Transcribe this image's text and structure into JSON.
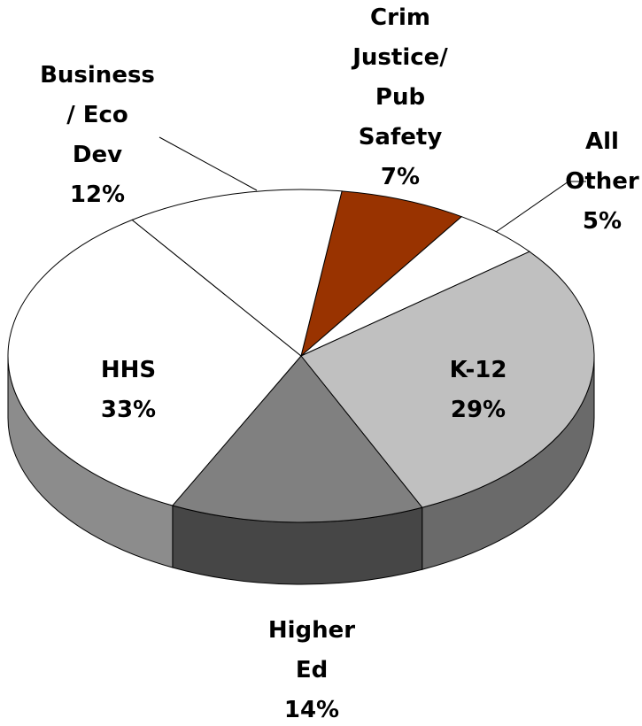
{
  "chart_data": {
    "type": "pie",
    "categories": [
      "Crim\nJustice/\nPub\nSafety",
      "All\nOther",
      "K-12",
      "Higher\nEd",
      "HHS",
      "Business\n/ Eco\nDev"
    ],
    "values": [
      7,
      5,
      29,
      14,
      33,
      12
    ],
    "value_labels": [
      "7%",
      "5%",
      "29%",
      "14%",
      "33%",
      "12%"
    ],
    "colors": [
      "#993300",
      "#ffffff",
      "#c0c0c0",
      "#808080",
      "#ffffff",
      "#ffffff"
    ]
  }
}
